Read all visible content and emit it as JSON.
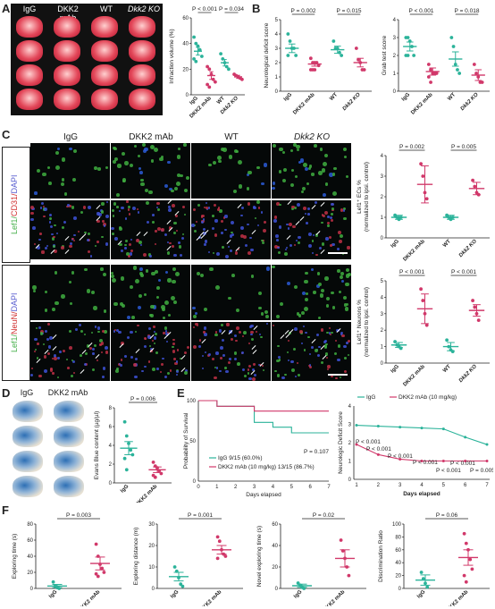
{
  "panel_labels": {
    "A": "A",
    "B": "B",
    "C": "C",
    "D": "D",
    "E": "E",
    "F": "F"
  },
  "groups": {
    "igg": "IgG",
    "dkk2_mab": "DKK2 mAb",
    "wt": "WT",
    "dkk2_ko": "Dkk2 KO"
  },
  "panelC": {
    "row_label_top": [
      "Lef1/",
      "CD31/",
      "DAPI"
    ],
    "row_label_bottom": [
      "Lef1/",
      "NeuN/",
      "DAPI"
    ]
  },
  "panelE": {
    "legend_igg": "IgG  9/15 (60.0%)",
    "legend_mab": "DKK2 mAb (10 mg/kg) 13/15 (86.7%)",
    "legend2_igg": "IgG",
    "legend2_mab": "DKK2 mAb (10 mg/kg)"
  },
  "colors": {
    "igg": "#2bb39a",
    "mab": "#d1386a",
    "wt": "#2bb39a",
    "ko": "#d1386a",
    "purple": "#5a5fd0",
    "green": "#46b04a"
  },
  "chart_data": [
    {
      "id": "infarction",
      "type": "bar",
      "categories": [
        "IgG",
        "DKK2 mAb",
        "WT",
        "Dkk2 KO"
      ],
      "values": [
        34,
        15,
        25,
        14
      ],
      "errors": [
        3,
        3,
        2.5,
        1.2
      ],
      "points": [
        [
          45,
          40,
          38,
          35,
          30,
          28,
          26
        ],
        [
          22,
          20,
          16,
          12,
          10,
          8,
          6
        ],
        [
          32,
          28,
          25,
          22,
          20
        ],
        [
          16,
          15,
          14,
          13,
          12
        ]
      ],
      "ylabel": "Infraction volume (%)",
      "ylim": [
        0,
        60
      ],
      "yticks": [
        0,
        20,
        40,
        60
      ],
      "annotations": [
        {
          "text": "P < 0.001",
          "from": 0,
          "to": 1
        },
        {
          "text": "P = 0.034",
          "from": 2,
          "to": 3
        }
      ]
    },
    {
      "id": "neuro",
      "type": "bar",
      "categories": [
        "IgG",
        "DKK2 mAb",
        "WT",
        "Dkk2 KO"
      ],
      "values": [
        3,
        1.9,
        2.9,
        2
      ],
      "errors": [
        0.3,
        0.15,
        0.25,
        0.3
      ],
      "points": [
        [
          4,
          3.5,
          3,
          3,
          2.5,
          2.5
        ],
        [
          2.3,
          2,
          2,
          2,
          1.8,
          1.5,
          1.5,
          1.5
        ],
        [
          3.5,
          3,
          3,
          2.7,
          2.5
        ],
        [
          3,
          2.2,
          2,
          1.5,
          1.5
        ]
      ],
      "ylabel": "Neurological deficit score",
      "ylim": [
        0,
        5
      ],
      "yticks": [
        0,
        1,
        2,
        3,
        4,
        5
      ],
      "annotations": [
        {
          "text": "P = 0.002",
          "from": 0,
          "to": 1
        },
        {
          "text": "P = 0.015",
          "from": 2,
          "to": 3
        }
      ]
    },
    {
      "id": "grab",
      "type": "bar",
      "categories": [
        "IgG",
        "DKK2 mAb",
        "WT",
        "Dkk2 KO"
      ],
      "values": [
        2.5,
        1.1,
        1.8,
        0.9
      ],
      "errors": [
        0.25,
        0.2,
        0.4,
        0.3
      ],
      "points": [
        [
          3,
          3,
          2.8,
          2.5,
          2,
          2,
          2
        ],
        [
          1.5,
          1.2,
          1,
          1,
          1,
          0.8,
          0.5
        ],
        [
          3,
          2.5,
          1.5,
          1.2,
          1
        ],
        [
          1.5,
          1,
          0.8,
          0.5,
          0.5
        ]
      ],
      "ylabel": "Grab test score",
      "ylim": [
        0,
        4
      ],
      "yticks": [
        0,
        1,
        2,
        3,
        4
      ],
      "annotations": [
        {
          "text": "P < 0.001",
          "from": 0,
          "to": 1
        },
        {
          "text": "P = 0.018",
          "from": 2,
          "to": 3
        }
      ]
    },
    {
      "id": "lef1ec",
      "type": "bar",
      "categories": [
        "IgG",
        "DKK2 mAb",
        "WT",
        "Dkk2 KO"
      ],
      "values": [
        1,
        2.6,
        1,
        2.4
      ],
      "errors": [
        0.1,
        0.9,
        0.1,
        0.3
      ],
      "points": [
        [
          1.1,
          1,
          0.9,
          1
        ],
        [
          3.6,
          3,
          2.2,
          1.9
        ],
        [
          1.1,
          1,
          0.9,
          1
        ],
        [
          2.8,
          2.5,
          2.2,
          2.1
        ]
      ],
      "ylabel": "Lef1⁺ ECs %",
      "ylabel2": "(normalized to ipsi. control)",
      "ylim": [
        0,
        4
      ],
      "yticks": [
        0,
        1,
        2,
        3,
        4
      ],
      "annotations": [
        {
          "text": "P = 0.002",
          "from": 0,
          "to": 1
        },
        {
          "text": "P = 0.005",
          "from": 2,
          "to": 3
        }
      ]
    },
    {
      "id": "lef1neuron",
      "type": "bar",
      "categories": [
        "IgG",
        "DKK2 mAb",
        "WT",
        "Dkk2 KO"
      ],
      "values": [
        1.1,
        3.3,
        1,
        3.2
      ],
      "errors": [
        0.15,
        0.9,
        0.25,
        0.35
      ],
      "points": [
        [
          1.3,
          1.1,
          1,
          0.9
        ],
        [
          4.5,
          3.8,
          3,
          2.3
        ],
        [
          1.4,
          1,
          0.8,
          0.7
        ],
        [
          3.8,
          3.4,
          3,
          2.6
        ]
      ],
      "ylabel": "Lef1⁺ Neurons %",
      "ylabel2": "(normalized to ipsi. control)",
      "ylim": [
        0,
        5
      ],
      "yticks": [
        0,
        1,
        2,
        3,
        4,
        5
      ],
      "annotations": [
        {
          "text": "P < 0.001",
          "from": 0,
          "to": 1
        },
        {
          "text": "P < 0.001",
          "from": 2,
          "to": 3
        }
      ]
    },
    {
      "id": "evans",
      "type": "bar",
      "categories": [
        "IgG",
        "DKK2 mAb"
      ],
      "values": [
        3.7,
        1.4
      ],
      "errors": [
        0.7,
        0.3
      ],
      "points": [
        [
          6.5,
          5,
          4.2,
          3.5,
          3,
          2.6,
          1.4
        ],
        [
          2.2,
          1.8,
          1.6,
          1.3,
          1,
          0.8,
          0.6
        ]
      ],
      "ylabel": "Evans Blue content (µg/µl)",
      "ylim": [
        0,
        8
      ],
      "yticks": [
        0,
        2,
        4,
        6,
        8
      ],
      "annotations": [
        {
          "text": "P = 0.006",
          "from": 0,
          "to": 1
        }
      ]
    },
    {
      "id": "survival",
      "type": "line",
      "xlabel": "Days elapsed",
      "ylabel": "Probability of Survival",
      "xlim": [
        0,
        7
      ],
      "ylim": [
        0,
        100
      ],
      "xticks": [
        0,
        1,
        2,
        3,
        4,
        5,
        6,
        7
      ],
      "yticks": [
        0,
        50,
        100
      ],
      "series": [
        {
          "name": "IgG",
          "x": [
            0,
            1,
            1,
            3,
            3,
            4,
            4,
            5,
            5,
            7
          ],
          "y": [
            100,
            100,
            93,
            93,
            73,
            73,
            67,
            67,
            60,
            60
          ]
        },
        {
          "name": "DKK2 mAb (10 mg/kg)",
          "x": [
            0,
            1,
            1,
            3,
            3,
            7
          ],
          "y": [
            100,
            100,
            93,
            93,
            87,
            87
          ]
        }
      ],
      "annotations": [
        {
          "text": "P = 0.107"
        }
      ]
    },
    {
      "id": "neurologic",
      "type": "line",
      "xlabel": "Days elapsed",
      "ylabel": "Neurologic Deficit Score",
      "xlim": [
        1,
        7
      ],
      "ylim": [
        0,
        4
      ],
      "xticks": [
        1,
        2,
        3,
        4,
        5,
        6,
        7
      ],
      "yticks": [
        0,
        1,
        2,
        3,
        4
      ],
      "series": [
        {
          "name": "IgG",
          "x": [
            1,
            2,
            3,
            4,
            5,
            6,
            7
          ],
          "y": [
            2.95,
            2.9,
            2.85,
            2.8,
            2.75,
            2.3,
            1.9
          ]
        },
        {
          "name": "DKK2 mAb (10 mg/kg)",
          "x": [
            1,
            2,
            3,
            4,
            5,
            6,
            7
          ],
          "y": [
            1.9,
            1.35,
            1.1,
            1,
            1,
            1,
            1
          ]
        }
      ],
      "annotations": [
        "P < 0.001",
        "P < 0.001",
        "P < 0.001",
        "P < 0.001",
        "P < 0.001",
        "P < 0.001",
        "P = 0.005"
      ]
    },
    {
      "id": "explore_time",
      "type": "bar",
      "categories": [
        "IgG",
        "DKK2 mAb"
      ],
      "values": [
        3,
        31
      ],
      "errors": [
        2,
        8
      ],
      "points": [
        [
          8,
          3,
          1,
          0
        ],
        [
          55,
          40,
          30,
          25,
          20,
          18,
          15
        ]
      ],
      "ylabel": "Exploring time (s)",
      "ylim": [
        0,
        80
      ],
      "yticks": [
        0,
        20,
        40,
        60,
        80
      ],
      "annotations": [
        {
          "text": "P = 0.003",
          "from": 0,
          "to": 1
        }
      ]
    },
    {
      "id": "explore_dist",
      "type": "bar",
      "categories": [
        "IgG",
        "DKK2 mAb"
      ],
      "values": [
        5.5,
        18
      ],
      "errors": [
        2,
        2
      ],
      "points": [
        [
          10,
          8,
          5,
          2,
          1
        ],
        [
          24,
          22,
          18,
          16,
          15,
          14
        ]
      ],
      "ylabel": "Exploring distance (m)",
      "ylim": [
        0,
        30
      ],
      "yticks": [
        0,
        10,
        20,
        30
      ],
      "annotations": [
        {
          "text": "P = 0.001",
          "from": 0,
          "to": 1
        }
      ]
    },
    {
      "id": "novel_time",
      "type": "bar",
      "categories": [
        "IgG",
        "DKK2 mAb"
      ],
      "values": [
        2.5,
        28
      ],
      "errors": [
        1.5,
        8
      ],
      "points": [
        [
          5,
          3,
          1,
          0
        ],
        [
          45,
          35,
          28,
          20,
          12
        ]
      ],
      "ylabel": "Novel exploring time (s)",
      "ylim": [
        0,
        60
      ],
      "yticks": [
        0,
        20,
        40,
        60
      ],
      "annotations": [
        {
          "text": "P = 0.02",
          "from": 0,
          "to": 1
        }
      ]
    },
    {
      "id": "discrimination",
      "type": "bar",
      "categories": [
        "IgG",
        "DKK2 mAb"
      ],
      "values": [
        13,
        48
      ],
      "errors": [
        8,
        12
      ],
      "points": [
        [
          25,
          15,
          8,
          2
        ],
        [
          85,
          70,
          60,
          45,
          30,
          20,
          10
        ]
      ],
      "ylabel": "Discrimination Ratio",
      "ylim": [
        0,
        100
      ],
      "yticks": [
        0,
        20,
        40,
        60,
        80,
        100
      ],
      "annotations": [
        {
          "text": "P = 0.06",
          "from": 0,
          "to": 1
        }
      ]
    }
  ]
}
